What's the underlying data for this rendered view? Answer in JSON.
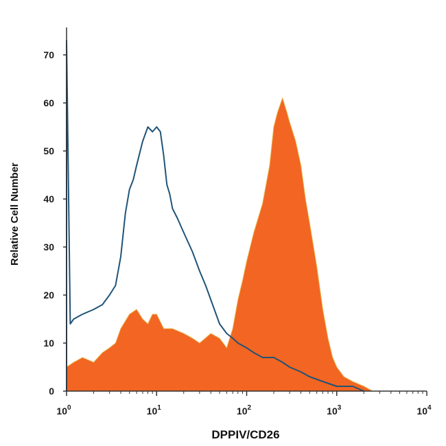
{
  "chart_data": {
    "type": "area",
    "xlabel": "DPPIV/CD26",
    "ylabel": "Relative Cell Number",
    "x_scale": "log",
    "xlim": [
      1,
      10000
    ],
    "ylim": [
      0,
      75
    ],
    "x_ticks": [
      {
        "value": 1,
        "base": "10",
        "exp": "0"
      },
      {
        "value": 10,
        "base": "10",
        "exp": "1"
      },
      {
        "value": 100,
        "base": "10",
        "exp": "2"
      },
      {
        "value": 1000,
        "base": "10",
        "exp": "3"
      },
      {
        "value": 10000,
        "base": "10",
        "exp": "4"
      }
    ],
    "y_ticks": [
      0,
      10,
      20,
      30,
      40,
      50,
      60,
      70
    ],
    "grid": false,
    "legend": "none",
    "colors": {
      "filled": "#f26522",
      "filled_edge": "#e8b04a",
      "outline": "#1f5378",
      "axis": "#333333"
    },
    "series": [
      {
        "style": "filled histogram",
        "x": [
          1,
          1.2,
          1.5,
          2,
          2.5,
          3,
          3.5,
          4,
          5,
          6,
          7,
          8,
          9,
          10,
          12,
          15,
          20,
          25,
          30,
          40,
          50,
          60,
          70,
          80,
          90,
          100,
          120,
          150,
          180,
          200,
          220,
          250,
          280,
          300,
          350,
          400,
          450,
          500,
          600,
          700,
          800,
          900,
          1000,
          1200,
          1500,
          2000,
          2500
        ],
        "values": [
          5,
          6,
          7,
          6,
          8,
          9,
          10,
          13,
          16,
          17,
          15,
          14,
          16,
          16,
          13,
          13,
          12,
          11,
          10,
          12,
          11,
          9,
          13,
          19,
          23,
          27,
          33,
          39,
          47,
          55,
          58,
          61,
          58,
          56,
          52,
          47,
          40,
          35,
          26,
          17,
          11,
          7,
          5,
          3,
          2,
          1,
          0
        ]
      },
      {
        "style": "outline histogram",
        "x": [
          1,
          1.1,
          1.2,
          1.5,
          2,
          2.5,
          3,
          3.5,
          4,
          4.5,
          5,
          5.5,
          6,
          7,
          8,
          9,
          10,
          11,
          12,
          13,
          14,
          15,
          17,
          20,
          25,
          30,
          35,
          40,
          50,
          60,
          70,
          80,
          100,
          120,
          150,
          200,
          250,
          300,
          400,
          500,
          700,
          1000,
          1500,
          2000
        ],
        "values": [
          73,
          14,
          15,
          16,
          17,
          18,
          20,
          22,
          28,
          37,
          42,
          44,
          47,
          52,
          55,
          54,
          55,
          54,
          49,
          43,
          41,
          38,
          36,
          33,
          29,
          25,
          22,
          19,
          14,
          12,
          11,
          10,
          9,
          8,
          7,
          7,
          6,
          5,
          4,
          3,
          2,
          1,
          1,
          0
        ]
      }
    ]
  }
}
